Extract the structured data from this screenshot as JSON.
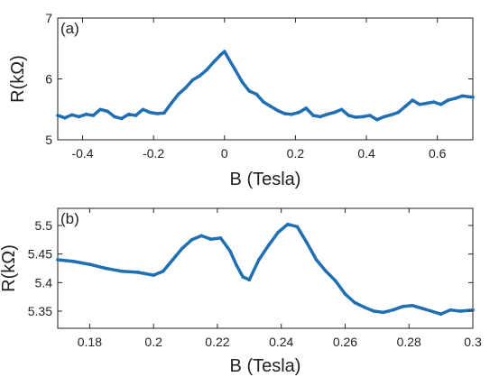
{
  "chart_data": [
    {
      "type": "line",
      "panel_label": "(a)",
      "xlabel": "B (Tesla)",
      "ylabel": "R(kΩ)",
      "xlim": [
        -0.47,
        0.7
      ],
      "ylim": [
        5,
        7
      ],
      "xticks": [
        -0.4,
        -0.2,
        0,
        0.2,
        0.4,
        0.6
      ],
      "xtick_labels": [
        "-0.4",
        "-0.2",
        "0",
        "0.2",
        "0.4",
        "0.6"
      ],
      "yticks": [
        5,
        6,
        7
      ],
      "ytick_labels": [
        "5",
        "6",
        "7"
      ],
      "grid": false,
      "series_color": "#1f6fb2",
      "series": [
        {
          "x": [
            -0.47,
            -0.45,
            -0.43,
            -0.41,
            -0.39,
            -0.37,
            -0.35,
            -0.33,
            -0.31,
            -0.29,
            -0.27,
            -0.25,
            -0.23,
            -0.21,
            -0.19,
            -0.17,
            -0.15,
            -0.13,
            -0.11,
            -0.09,
            -0.07,
            -0.05,
            -0.03,
            -0.01,
            0.0,
            0.01,
            0.03,
            0.05,
            0.07,
            0.09,
            0.11,
            0.13,
            0.15,
            0.17,
            0.19,
            0.21,
            0.23,
            0.25,
            0.27,
            0.29,
            0.31,
            0.33,
            0.35,
            0.37,
            0.39,
            0.41,
            0.43,
            0.45,
            0.47,
            0.49,
            0.51,
            0.53,
            0.55,
            0.57,
            0.59,
            0.61,
            0.63,
            0.65,
            0.67,
            0.7
          ],
          "y": [
            5.4,
            5.36,
            5.41,
            5.38,
            5.42,
            5.4,
            5.5,
            5.47,
            5.38,
            5.35,
            5.42,
            5.4,
            5.5,
            5.45,
            5.43,
            5.44,
            5.6,
            5.75,
            5.85,
            5.98,
            6.05,
            6.15,
            6.28,
            6.4,
            6.45,
            6.35,
            6.15,
            5.95,
            5.8,
            5.75,
            5.62,
            5.55,
            5.48,
            5.43,
            5.42,
            5.45,
            5.52,
            5.4,
            5.38,
            5.42,
            5.45,
            5.5,
            5.4,
            5.37,
            5.38,
            5.4,
            5.33,
            5.38,
            5.41,
            5.45,
            5.55,
            5.65,
            5.58,
            5.6,
            5.62,
            5.58,
            5.65,
            5.68,
            5.72,
            5.7
          ]
        }
      ]
    },
    {
      "type": "line",
      "panel_label": "(b)",
      "xlabel": "B (Tesla)",
      "ylabel": "R(kΩ)",
      "xlim": [
        0.17,
        0.3
      ],
      "ylim": [
        5.32,
        5.53
      ],
      "xticks": [
        0.18,
        0.2,
        0.22,
        0.24,
        0.26,
        0.28,
        0.3
      ],
      "xtick_labels": [
        "0.18",
        "0.2",
        "0.22",
        "0.24",
        "0.26",
        "0.28",
        "0.3"
      ],
      "yticks": [
        5.35,
        5.4,
        5.45,
        5.5
      ],
      "ytick_labels": [
        "5.35",
        "5.4",
        "5.45",
        "5.5"
      ],
      "grid": false,
      "series_color": "#1f6fb2",
      "series": [
        {
          "x": [
            0.17,
            0.175,
            0.18,
            0.185,
            0.19,
            0.195,
            0.2,
            0.203,
            0.206,
            0.209,
            0.212,
            0.215,
            0.218,
            0.221,
            0.224,
            0.226,
            0.228,
            0.23,
            0.233,
            0.236,
            0.239,
            0.242,
            0.245,
            0.248,
            0.251,
            0.254,
            0.257,
            0.26,
            0.263,
            0.266,
            0.269,
            0.272,
            0.275,
            0.278,
            0.281,
            0.284,
            0.287,
            0.29,
            0.293,
            0.296,
            0.3
          ],
          "y": [
            5.44,
            5.437,
            5.432,
            5.425,
            5.42,
            5.418,
            5.413,
            5.42,
            5.44,
            5.46,
            5.475,
            5.482,
            5.476,
            5.478,
            5.455,
            5.43,
            5.41,
            5.405,
            5.44,
            5.465,
            5.488,
            5.502,
            5.498,
            5.47,
            5.44,
            5.42,
            5.403,
            5.38,
            5.365,
            5.357,
            5.35,
            5.348,
            5.352,
            5.358,
            5.36,
            5.355,
            5.35,
            5.345,
            5.352,
            5.35,
            5.352
          ]
        }
      ]
    }
  ]
}
